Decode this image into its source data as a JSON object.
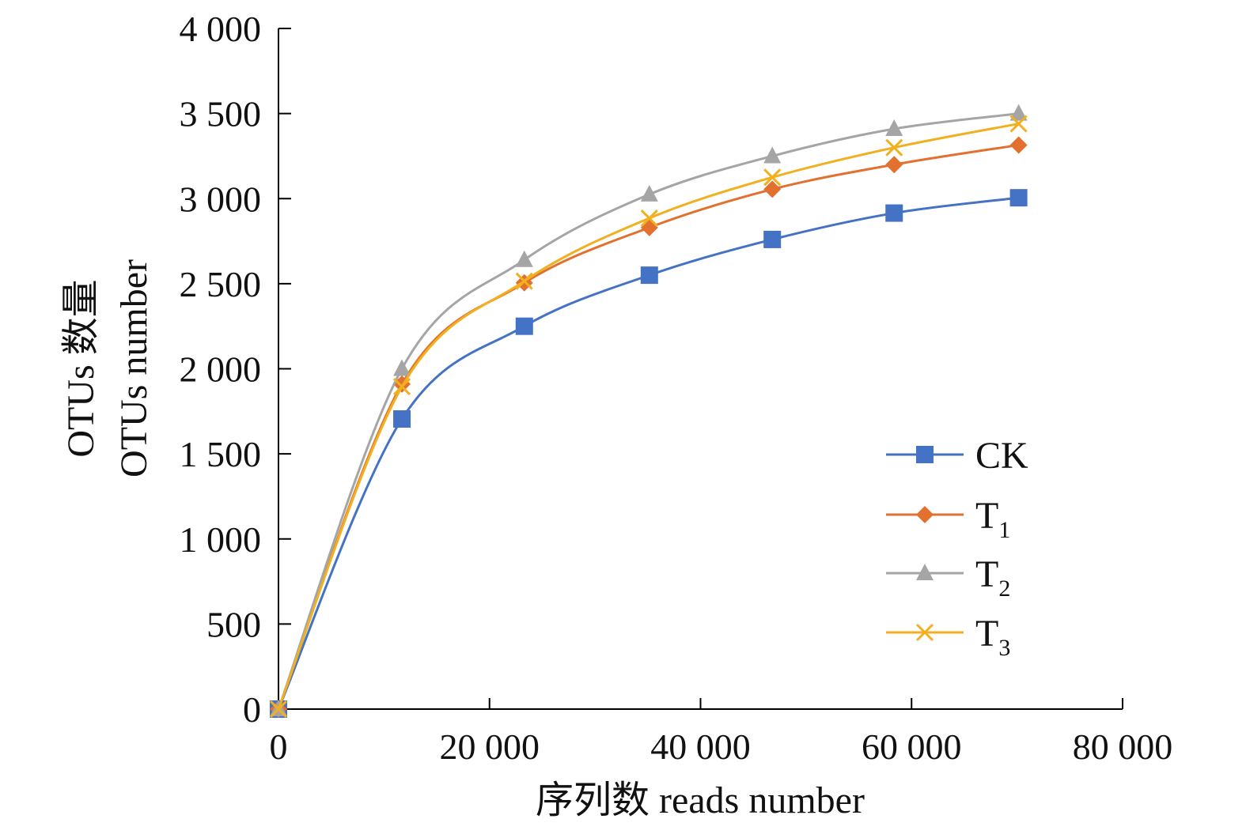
{
  "chart_data": {
    "type": "line",
    "title": "",
    "xlabel": "序列数 reads number",
    "ylabel_lines": [
      "OTUs 数量",
      "OTUs number"
    ],
    "xlim": [
      0,
      80000
    ],
    "ylim": [
      0,
      4000
    ],
    "xticks": [
      0,
      20000,
      40000,
      60000,
      80000
    ],
    "xtick_labels": [
      "0",
      "20 000",
      "40 000",
      "60 000",
      "80 000"
    ],
    "yticks": [
      0,
      500,
      1000,
      1500,
      2000,
      2500,
      3000,
      3500,
      4000
    ],
    "ytick_labels": [
      "0",
      "500",
      "1 000",
      "1 500",
      "2 000",
      "2 500",
      "3 000",
      "3 500",
      "4 000"
    ],
    "grid": false,
    "legend_position": "bottom-right",
    "x": [
      0,
      11700,
      23300,
      35150,
      46800,
      58350,
      70150
    ],
    "series": [
      {
        "name": "CK",
        "base": "CK",
        "sub": "",
        "color": "#4472C4",
        "marker": "square",
        "values": [
          0,
          1705,
          2250,
          2550,
          2760,
          2915,
          3005
        ]
      },
      {
        "name": "T1",
        "base": "T",
        "sub": "1",
        "color": "#E2702F",
        "marker": "diamond",
        "values": [
          0,
          1910,
          2505,
          2830,
          3055,
          3200,
          3315
        ]
      },
      {
        "name": "T2",
        "base": "T",
        "sub": "2",
        "color": "#A5A5A5",
        "marker": "triangle",
        "values": [
          0,
          2000,
          2640,
          3025,
          3250,
          3410,
          3500
        ]
      },
      {
        "name": "T3",
        "base": "T",
        "sub": "3",
        "color": "#F0B020",
        "marker": "x",
        "values": [
          0,
          1895,
          2515,
          2885,
          3125,
          3300,
          3440
        ]
      }
    ]
  }
}
